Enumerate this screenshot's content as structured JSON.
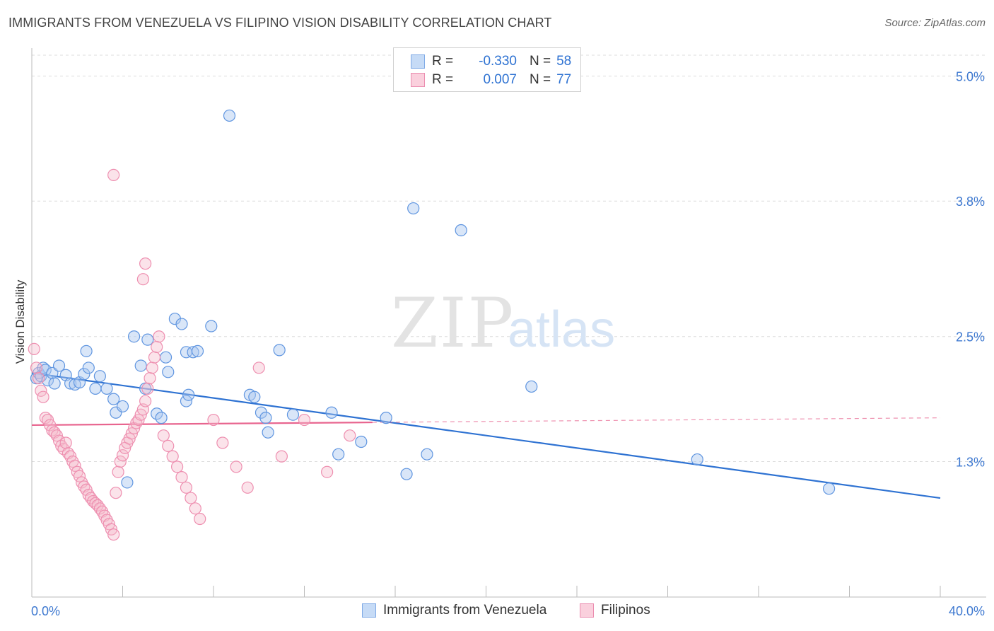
{
  "title": "IMMIGRANTS FROM VENEZUELA VS FILIPINO VISION DISABILITY CORRELATION CHART",
  "source": "Source: ZipAtlas.com",
  "watermark": {
    "zip": "ZIP",
    "atlas": "atlas"
  },
  "colors": {
    "blue": "#2e72d2",
    "blue_fill": "#aac8ef",
    "pink": "#e8658f",
    "pink_fill": "#f5b8cb",
    "tick_label": "#3d78d0",
    "grid": "#dcdcdc"
  },
  "legend_top": {
    "rows": [
      {
        "r_label": "R =",
        "r_value": "-0.330",
        "n_label": "N =",
        "n_value": "58"
      },
      {
        "r_label": "R =",
        "r_value": "0.007",
        "n_label": "N =",
        "n_value": "77"
      }
    ]
  },
  "legend_bottom": {
    "blue": "Immigrants from Venezuela",
    "pink": "Filipinos"
  },
  "chart_data": {
    "type": "scatter",
    "title": "IMMIGRANTS FROM VENEZUELA VS FILIPINO VISION DISABILITY CORRELATION CHART",
    "xlabel": "",
    "ylabel": "Vision Disability",
    "xlim": [
      0,
      40
    ],
    "ylim": [
      0,
      5.2
    ],
    "x_tick_labels": [
      {
        "value": 0,
        "label": "0.0%"
      },
      {
        "value": 40,
        "label": "40.0%"
      }
    ],
    "y_ticks": [
      {
        "value": 1.3,
        "label": "1.3%"
      },
      {
        "value": 2.5,
        "label": "2.5%"
      },
      {
        "value": 3.8,
        "label": "3.8%"
      },
      {
        "value": 5.0,
        "label": "5.0%"
      }
    ],
    "series": [
      {
        "name": "Immigrants from Venezuela",
        "color": "blue",
        "R": -0.33,
        "N": 58,
        "trend": {
          "x0": 0,
          "y0": 2.15,
          "x1": 40,
          "y1": 0.95,
          "dashed_from": null
        },
        "points": [
          [
            0.2,
            2.1
          ],
          [
            0.3,
            2.15
          ],
          [
            0.4,
            2.12
          ],
          [
            0.5,
            2.2
          ],
          [
            0.6,
            2.18
          ],
          [
            0.7,
            2.08
          ],
          [
            0.9,
            2.15
          ],
          [
            1.0,
            2.05
          ],
          [
            1.2,
            2.22
          ],
          [
            1.5,
            2.13
          ],
          [
            1.7,
            2.05
          ],
          [
            1.9,
            2.04
          ],
          [
            2.1,
            2.06
          ],
          [
            2.3,
            2.14
          ],
          [
            2.4,
            2.36
          ],
          [
            2.5,
            2.2
          ],
          [
            2.8,
            2.0
          ],
          [
            3.0,
            2.12
          ],
          [
            3.3,
            2.0
          ],
          [
            3.6,
            1.9
          ],
          [
            3.7,
            1.77
          ],
          [
            4.0,
            1.83
          ],
          [
            4.2,
            1.1
          ],
          [
            4.5,
            2.5
          ],
          [
            4.8,
            2.22
          ],
          [
            5.0,
            2.0
          ],
          [
            5.1,
            2.47
          ],
          [
            5.5,
            1.76
          ],
          [
            5.7,
            1.72
          ],
          [
            5.9,
            2.3
          ],
          [
            6.0,
            2.16
          ],
          [
            6.3,
            2.67
          ],
          [
            6.6,
            2.62
          ],
          [
            6.8,
            2.35
          ],
          [
            6.8,
            1.88
          ],
          [
            6.9,
            1.94
          ],
          [
            7.1,
            2.35
          ],
          [
            7.3,
            2.36
          ],
          [
            7.9,
            2.6
          ],
          [
            8.7,
            4.62
          ],
          [
            9.6,
            1.94
          ],
          [
            9.8,
            1.92
          ],
          [
            10.1,
            1.77
          ],
          [
            10.3,
            1.72
          ],
          [
            10.4,
            1.58
          ],
          [
            10.9,
            2.37
          ],
          [
            11.5,
            1.75
          ],
          [
            13.2,
            1.77
          ],
          [
            13.5,
            1.37
          ],
          [
            14.5,
            1.49
          ],
          [
            15.6,
            1.72
          ],
          [
            16.5,
            1.18
          ],
          [
            17.4,
            1.37
          ],
          [
            18.9,
            3.52
          ],
          [
            16.8,
            3.73
          ],
          [
            22.0,
            2.02
          ],
          [
            29.3,
            1.32
          ],
          [
            35.1,
            1.04
          ]
        ]
      },
      {
        "name": "Filipinos",
        "color": "pink",
        "R": 0.007,
        "N": 77,
        "trend": {
          "x0": 0,
          "y0": 1.65,
          "x1": 40,
          "y1": 1.72,
          "dashed_from": 15
        },
        "points": [
          [
            0.1,
            2.38
          ],
          [
            0.2,
            2.2
          ],
          [
            0.3,
            2.1
          ],
          [
            0.4,
            1.98
          ],
          [
            0.5,
            1.92
          ],
          [
            0.6,
            1.72
          ],
          [
            0.7,
            1.7
          ],
          [
            0.8,
            1.65
          ],
          [
            0.9,
            1.6
          ],
          [
            1.0,
            1.58
          ],
          [
            1.1,
            1.55
          ],
          [
            1.2,
            1.5
          ],
          [
            1.3,
            1.45
          ],
          [
            1.4,
            1.42
          ],
          [
            1.5,
            1.48
          ],
          [
            1.6,
            1.38
          ],
          [
            1.7,
            1.35
          ],
          [
            1.8,
            1.3
          ],
          [
            1.9,
            1.26
          ],
          [
            2.0,
            1.2
          ],
          [
            2.1,
            1.16
          ],
          [
            2.2,
            1.1
          ],
          [
            2.3,
            1.06
          ],
          [
            2.4,
            1.03
          ],
          [
            2.5,
            0.98
          ],
          [
            2.6,
            0.95
          ],
          [
            2.7,
            0.92
          ],
          [
            2.8,
            0.9
          ],
          [
            2.9,
            0.88
          ],
          [
            3.0,
            0.85
          ],
          [
            3.1,
            0.82
          ],
          [
            3.2,
            0.78
          ],
          [
            3.3,
            0.74
          ],
          [
            3.4,
            0.7
          ],
          [
            3.5,
            0.65
          ],
          [
            3.6,
            0.6
          ],
          [
            3.7,
            1.0
          ],
          [
            3.8,
            1.2
          ],
          [
            3.9,
            1.3
          ],
          [
            4.0,
            1.36
          ],
          [
            4.1,
            1.43
          ],
          [
            4.2,
            1.48
          ],
          [
            4.3,
            1.52
          ],
          [
            4.4,
            1.57
          ],
          [
            4.5,
            1.62
          ],
          [
            4.6,
            1.67
          ],
          [
            4.7,
            1.7
          ],
          [
            4.8,
            1.75
          ],
          [
            4.9,
            1.8
          ],
          [
            5.0,
            1.88
          ],
          [
            5.1,
            2.0
          ],
          [
            5.2,
            2.1
          ],
          [
            5.3,
            2.2
          ],
          [
            5.4,
            2.3
          ],
          [
            5.5,
            2.4
          ],
          [
            5.6,
            2.5
          ],
          [
            5.8,
            1.55
          ],
          [
            6.0,
            1.45
          ],
          [
            6.2,
            1.35
          ],
          [
            6.4,
            1.25
          ],
          [
            6.6,
            1.15
          ],
          [
            6.8,
            1.05
          ],
          [
            7.0,
            0.95
          ],
          [
            7.2,
            0.85
          ],
          [
            7.4,
            0.75
          ],
          [
            8.0,
            1.7
          ],
          [
            8.4,
            1.48
          ],
          [
            9.0,
            1.25
          ],
          [
            9.5,
            1.05
          ],
          [
            10.0,
            2.2
          ],
          [
            11.0,
            1.35
          ],
          [
            12.0,
            1.7
          ],
          [
            13.0,
            1.2
          ],
          [
            14.0,
            1.55
          ],
          [
            3.6,
            4.05
          ],
          [
            5.0,
            3.2
          ],
          [
            4.9,
            3.05
          ]
        ]
      }
    ]
  }
}
